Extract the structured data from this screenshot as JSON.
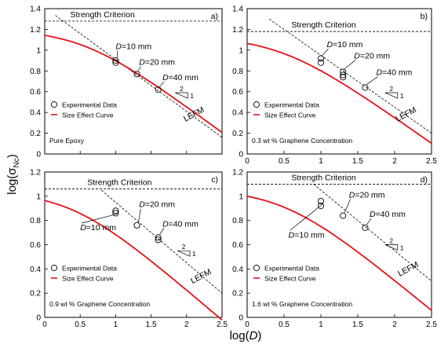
{
  "figure": {
    "ylabel_main": "log(σ",
    "ylabel_sub": "Nc",
    "ylabel_end": ")",
    "xlabel_main": "log(",
    "xlabel_var": "D",
    "xlabel_end": ")"
  },
  "chart_data": [
    {
      "type": "scatter",
      "panel_label": "a)",
      "caption": "Pure Epoxy",
      "xlim": [
        0,
        2.5
      ],
      "ylim": [
        0,
        1.4
      ],
      "xticks": [
        "0",
        "0.5",
        "1",
        "1.5",
        "2",
        "2.5"
      ],
      "yticks": [
        "0",
        "0.2",
        "0.4",
        "0.6",
        "0.8",
        "1",
        "1.2",
        "1.4"
      ],
      "show_xtick_labels": false,
      "show_ytick_labels": true,
      "strength_level": 1.28,
      "strength_label": "Strength Criterion",
      "curve": {
        "a": 1.2,
        "knee": 0.52
      },
      "lefm": {
        "slope": -0.5,
        "intercept": 1.41,
        "x_start": 0.15
      },
      "legend": [
        "Experimental Data",
        "Size Effect Curve"
      ],
      "series": [
        {
          "name": "Experimental Data",
          "x": [
            1.0,
            1.0,
            1.3,
            1.6
          ],
          "y": [
            0.9,
            0.88,
            0.77,
            0.62
          ]
        }
      ],
      "size_labels": [
        {
          "prefix": "D",
          "text": "=10 mm",
          "x": 1.0,
          "y": 1.01
        },
        {
          "prefix": "D",
          "text": "=20 mm",
          "x": 1.33,
          "y": 0.86
        },
        {
          "prefix": "D",
          "text": "=40 mm",
          "x": 1.66,
          "y": 0.71
        }
      ],
      "slope_marker": {
        "run": "2",
        "rise": "1",
        "x": 1.84,
        "y": 0.59
      },
      "lefm_label": {
        "text": "LEFM",
        "x": 2.12,
        "y": 0.36
      }
    },
    {
      "type": "scatter",
      "panel_label": "b)",
      "caption": "0.3 wt % Graphene Concentration",
      "xlim": [
        0,
        2.5
      ],
      "ylim": [
        0,
        1.4
      ],
      "xticks": [
        "0",
        "0.5",
        "1",
        "1.5",
        "2",
        "2.5"
      ],
      "yticks": [
        "0",
        "0.2",
        "0.4",
        "0.6",
        "0.8",
        "1",
        "1.2",
        "1.4"
      ],
      "show_xtick_labels": true,
      "show_ytick_labels": true,
      "strength_level": 1.18,
      "strength_label": "Strength Criterion",
      "curve": {
        "a": 1.13,
        "knee": 0.45
      },
      "lefm": {
        "slope": -0.5,
        "intercept": 1.45,
        "x_start": 0.3
      },
      "legend": [
        "Experimental Data",
        "Size Effect Curve"
      ],
      "series": [
        {
          "name": "Experimental Data",
          "x": [
            1.0,
            1.0,
            1.3,
            1.3,
            1.3,
            1.6
          ],
          "y": [
            0.92,
            0.88,
            0.79,
            0.76,
            0.74,
            0.64
          ]
        }
      ],
      "size_labels": [
        {
          "prefix": "D",
          "text": "=10 mm",
          "x": 1.08,
          "y": 1.03
        },
        {
          "prefix": "D",
          "text": "=20 mm",
          "x": 1.45,
          "y": 0.92
        },
        {
          "prefix": "D",
          "text": "=40 mm",
          "x": 1.75,
          "y": 0.76
        }
      ],
      "slope_marker": {
        "run": "2",
        "rise": "1",
        "x": 1.87,
        "y": 0.59
      },
      "lefm_label": {
        "text": "LEFM",
        "x": 2.17,
        "y": 0.36
      }
    },
    {
      "type": "scatter",
      "panel_label": "c)",
      "caption": "0.9 wt % Graphene Concentration",
      "xlim": [
        0,
        2.5
      ],
      "ylim": [
        0,
        1.2
      ],
      "xticks": [
        "0",
        "0.5",
        "1",
        "1.5",
        "2",
        "2.5"
      ],
      "yticks": [
        "0",
        "0.2",
        "0.4",
        "0.6",
        "0.8",
        "1",
        "1.2"
      ],
      "show_xtick_labels": true,
      "show_ytick_labels": true,
      "strength_level": 1.06,
      "strength_label": "Strength Criterion",
      "curve": {
        "a": 1.04,
        "knee": 0.38
      },
      "lefm": {
        "slope": -0.5,
        "intercept": 1.45,
        "x_start": 0.8
      },
      "legend": [
        "Experimental Data",
        "Size Effect Curve"
      ],
      "series": [
        {
          "name": "Experimental Data",
          "x": [
            1.0,
            1.0,
            1.3,
            1.6,
            1.6
          ],
          "y": [
            0.88,
            0.86,
            0.76,
            0.66,
            0.64
          ]
        }
      ],
      "size_labels": [
        {
          "prefix": "D",
          "text": "=10 mm",
          "x": 0.5,
          "y": 0.72
        },
        {
          "prefix": "D",
          "text": "=20 mm",
          "x": 1.33,
          "y": 0.91
        },
        {
          "prefix": "D",
          "text": "=40 mm",
          "x": 1.66,
          "y": 0.75
        }
      ],
      "slope_marker": {
        "run": "2",
        "rise": "1",
        "x": 1.87,
        "y": 0.55
      },
      "lefm_label": {
        "text": "LEFM",
        "x": 2.22,
        "y": 0.32
      }
    },
    {
      "type": "scatter",
      "panel_label": "d)",
      "caption": "1.6 wt % Graphene Concentration",
      "xlim": [
        0,
        2.5
      ],
      "ylim": [
        0,
        1.2
      ],
      "xticks": [
        "0",
        "0.5",
        "1",
        "1.5",
        "2",
        "2.5"
      ],
      "yticks": [
        "0",
        "0.2",
        "0.4",
        "0.6",
        "0.8",
        "1",
        "1.2"
      ],
      "show_xtick_labels": true,
      "show_ytick_labels": true,
      "strength_level": 1.1,
      "strength_label": "Strength Criterion",
      "curve": {
        "a": 1.06,
        "knee": 0.5
      },
      "lefm": {
        "slope": -0.5,
        "intercept": 1.55,
        "x_start": 0.9
      },
      "legend": [
        "Experimental Data",
        "Size Effect Curve"
      ],
      "series": [
        {
          "name": "Experimental Data",
          "x": [
            1.0,
            1.0,
            1.3,
            1.6
          ],
          "y": [
            0.96,
            0.92,
            0.84,
            0.74
          ]
        }
      ],
      "size_labels": [
        {
          "prefix": "D",
          "text": "=10 mm",
          "x": 0.56,
          "y": 0.66
        },
        {
          "prefix": "D",
          "text": "=20 mm",
          "x": 1.38,
          "y": 0.99
        },
        {
          "prefix": "D",
          "text": "=40 mm",
          "x": 1.66,
          "y": 0.83
        }
      ],
      "slope_marker": {
        "run": "2",
        "rise": "1",
        "x": 1.87,
        "y": 0.6
      },
      "lefm_label": {
        "text": "LEFM",
        "x": 2.2,
        "y": 0.38
      }
    }
  ]
}
